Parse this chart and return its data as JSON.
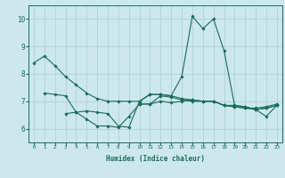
{
  "title": "",
  "xlabel": "Humidex (Indice chaleur)",
  "x": [
    0,
    1,
    2,
    3,
    4,
    5,
    6,
    7,
    8,
    9,
    10,
    11,
    12,
    13,
    14,
    15,
    16,
    17,
    18,
    19,
    20,
    21,
    22,
    23
  ],
  "series1": [
    8.4,
    8.65,
    8.3,
    7.9,
    7.6,
    7.3,
    7.1,
    7.0,
    7.0,
    7.0,
    7.0,
    7.25,
    7.25,
    7.2,
    7.9,
    10.1,
    9.65,
    10.0,
    8.85,
    6.85,
    6.8,
    6.7,
    6.75,
    6.85
  ],
  "series2": [
    null,
    null,
    null,
    6.55,
    6.6,
    6.35,
    6.1,
    6.1,
    6.05,
    6.45,
    6.9,
    6.9,
    7.2,
    7.15,
    7.05,
    7.0,
    7.0,
    7.0,
    6.85,
    6.8,
    6.75,
    6.7,
    6.45,
    6.85
  ],
  "series3": [
    null,
    null,
    null,
    null,
    null,
    null,
    null,
    null,
    null,
    null,
    6.9,
    6.9,
    7.0,
    6.95,
    7.0,
    7.05,
    7.0,
    7.0,
    6.85,
    6.8,
    6.75,
    6.75,
    6.8,
    6.9
  ],
  "series4": [
    null,
    7.3,
    7.25,
    7.2,
    6.6,
    6.65,
    6.6,
    6.55,
    6.1,
    6.05,
    7.0,
    7.25,
    7.25,
    7.2,
    7.1,
    7.05,
    7.0,
    7.0,
    6.85,
    6.85,
    6.8,
    6.7,
    6.75,
    6.85
  ],
  "line_color": "#1a6b5a",
  "bg_color": "#cce8ec",
  "grid_color": "#aacdd4",
  "ylim": [
    5.5,
    10.5
  ],
  "yticks": [
    6,
    7,
    8,
    9,
    10
  ],
  "marker": "D",
  "markersize": 1.8,
  "linewidth": 0.8
}
